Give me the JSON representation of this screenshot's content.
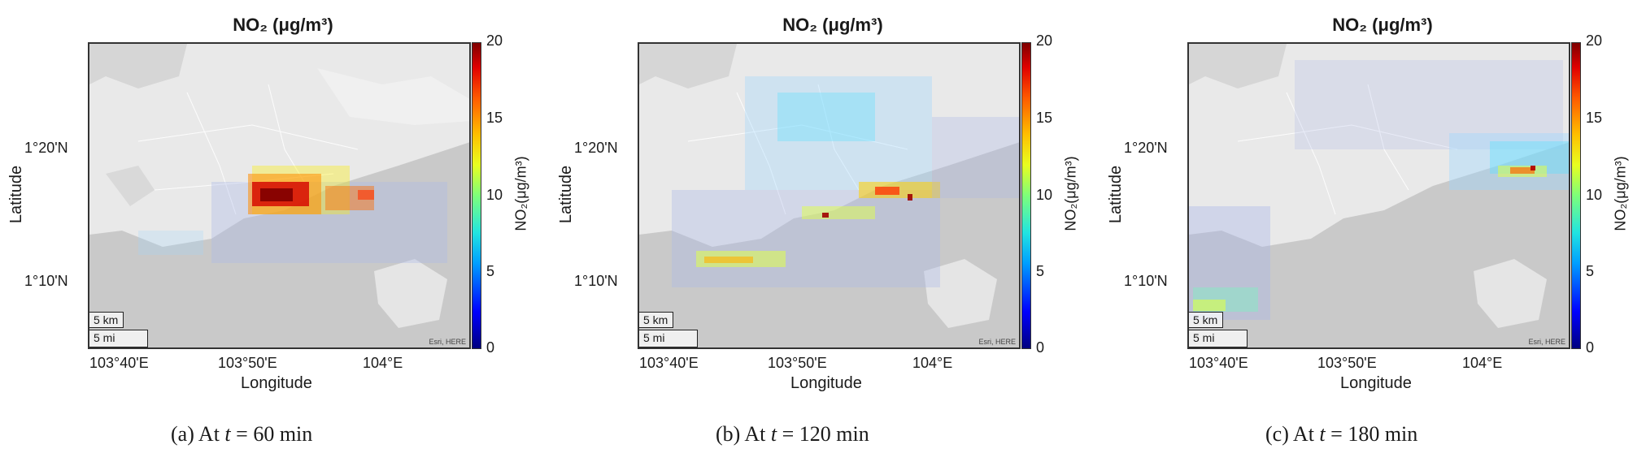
{
  "figure": {
    "map_title": "NO₂ (μg/m³)",
    "colorbar_label": "NO₂(μg/m³)",
    "colorbar_ticks": [
      "20",
      "15",
      "10",
      "5",
      "0"
    ],
    "colorbar_range": [
      0,
      20
    ],
    "colormap": "jet",
    "xlabel": "Longitude",
    "ylabel": "Latitude",
    "xticks": [
      "103°40'E",
      "103°50'E",
      "104°E"
    ],
    "yticks": [
      "1°20'N",
      "1°10'N"
    ],
    "scale_km": "5 km",
    "scale_mi": "5 mi",
    "attribution": "Esri, HERE"
  },
  "panels": [
    {
      "id": "a",
      "caption_prefix": "(a)  At ",
      "caption_var": "t",
      "caption_suffix": " = 60 min"
    },
    {
      "id": "b",
      "caption_prefix": "(b)  At ",
      "caption_var": "t",
      "caption_suffix": " = 120 min"
    },
    {
      "id": "c",
      "caption_prefix": "(c)  At ",
      "caption_var": "t",
      "caption_suffix": " = 180 min"
    }
  ],
  "colors": {
    "land": "#e9e9e9",
    "water": "#c8c8c8",
    "roads": "#ffffff",
    "haze": "#aab6e8"
  }
}
